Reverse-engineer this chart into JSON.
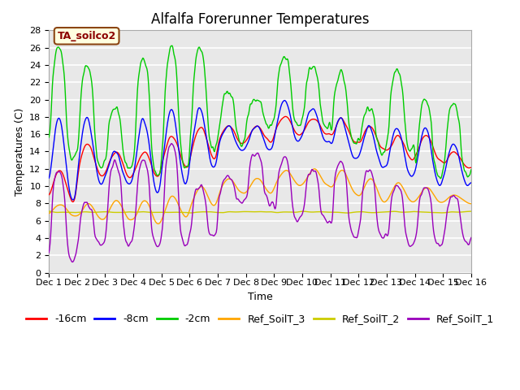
{
  "title": "Alfalfa Forerunner Temperatures",
  "xlabel": "Time",
  "ylabel": "Temperatures (C)",
  "ylim": [
    0,
    28
  ],
  "xlim": [
    0,
    15
  ],
  "xtick_labels": [
    "Dec 1",
    "Dec 2",
    "Dec 3",
    "Dec 4",
    "Dec 5",
    "Dec 6",
    "Dec 7",
    "Dec 8",
    "Dec 9",
    "Dec 10",
    "Dec 11",
    "Dec 12",
    "Dec 13",
    "Dec 14",
    "Dec 15",
    "Dec 16"
  ],
  "annotation": "TA_soilco2",
  "series_colors": {
    "-16cm": "#ff0000",
    "-8cm": "#0000ff",
    "-2cm": "#00cc00",
    "Ref_SoilT_3": "#ffa500",
    "Ref_SoilT_2": "#cccc00",
    "Ref_SoilT_1": "#9900bb"
  },
  "legend_labels": [
    "-16cm",
    "-8cm",
    "-2cm",
    "Ref_SoilT_3",
    "Ref_SoilT_2",
    "Ref_SoilT_1"
  ],
  "background_color": "#e8e8e8",
  "grid_color": "#ffffff",
  "title_fontsize": 12,
  "axis_fontsize": 9,
  "legend_fontsize": 9
}
